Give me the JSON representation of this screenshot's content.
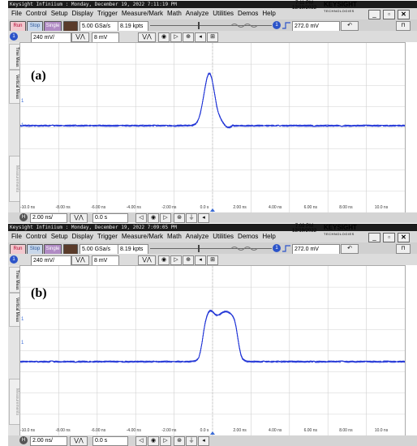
{
  "window": {
    "title": "Keysight Infiniium : Monday, December 19, 2022 7:11:19 PM",
    "title_b": "Keysight Infiniium : Monday, December 19, 2022 7:09:05 PM",
    "date": "12/19/2022",
    "time": "7:11 PM",
    "time_b": "7:09 PM",
    "brand": "KEYSIGHT",
    "brand_sub": "TECHNOLOGIES"
  },
  "menu": [
    "File",
    "Control",
    "Setup",
    "Display",
    "Trigger",
    "Measure/Mark",
    "Math",
    "Analyze",
    "Utilities",
    "Demos",
    "Help"
  ],
  "acq": {
    "run": "Run",
    "stop": "Stop",
    "single": "Single",
    "sample_rate": "5.00 GSa/s",
    "memory": "8.19 kpts"
  },
  "trigger": {
    "level": "272.0 mV",
    "channel": "1"
  },
  "channel": {
    "number": "1",
    "scale": "240 mV/",
    "offset": "8 mV"
  },
  "sidebar": {
    "tab1": "Time Meas",
    "tab2": "Vertical Meas",
    "tab3": "Measurements"
  },
  "horizontal": {
    "scale": "2.00 ns/",
    "delay": "0.0 s",
    "ch_label": "H"
  },
  "x_ticks": [
    "-10.0 ns",
    "-8.00 ns",
    "-6.00 ns",
    "-4.00 ns",
    "-2.00 ns",
    "0.0 s",
    "2.00 ns",
    "4.00 ns",
    "6.00 ns",
    "8.00 ns",
    "10.0 ns"
  ],
  "panels": [
    {
      "label": "(a)"
    },
    {
      "label": "(b)"
    }
  ],
  "colors": {
    "trace": "#1f33d6",
    "grid": "#d0d0d0"
  }
}
